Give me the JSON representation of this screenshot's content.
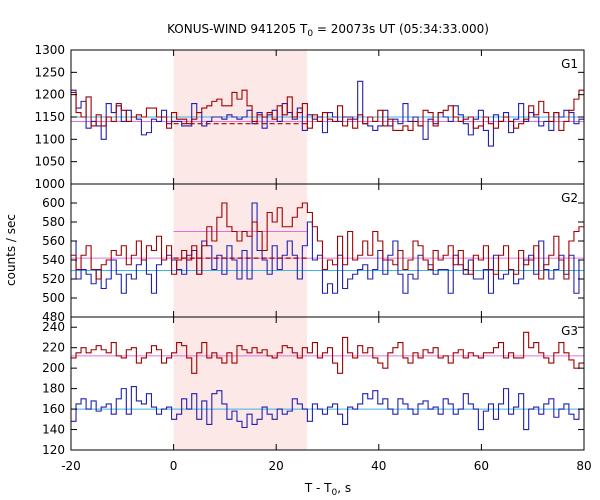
{
  "chart_data": {
    "type": "line",
    "title": "KONUS-WIND 941205 T",
    "title_sub": "0",
    "title_rest": " = 20073s UT (05:34:33.000)",
    "xlabel": "T - T",
    "xlabel_sub": "0",
    "xlabel_rest": ", s",
    "ylabel": "counts / sec",
    "xlim": [
      -20,
      80
    ],
    "x_ticks": [
      -20,
      0,
      20,
      40,
      60,
      80
    ],
    "highlight_interval": [
      0,
      26
    ],
    "colors": {
      "series_a": "#a00000",
      "series_b": "#2020b0",
      "bg_a": "#e070e0",
      "bg_b": "#40b0e0",
      "highlight": "#fde8e8"
    },
    "panels": [
      {
        "label": "G1",
        "ylim": [
          1000,
          1300
        ],
        "y_ticks": [
          1050,
          1100,
          1150,
          1200,
          1250,
          1300
        ],
        "bottom_tick": "1000",
        "background": {
          "a": 1140,
          "b": 1150
        },
        "dashed": {
          "a": {
            "x": [
              0,
              26
            ],
            "y": 1135
          },
          "b": null
        },
        "series_a": [
          1205,
          1160,
          1150,
          1195,
          1130,
          1155,
          1130,
          1150,
          1140,
          1180,
          1165,
          1140,
          1150,
          1155,
          1150,
          1170,
          1170,
          1150,
          1150,
          1125,
          1160,
          1145,
          1145,
          1135,
          1145,
          1160,
          1170,
          1175,
          1185,
          1190,
          1175,
          1175,
          1205,
          1190,
          1210,
          1175,
          1140,
          1155,
          1150,
          1160,
          1145,
          1175,
          1155,
          1195,
          1150,
          1160,
          1180,
          1125,
          1155,
          1140,
          1160,
          1145,
          1140,
          1175,
          1130,
          1145,
          1125,
          1155,
          1135,
          1150,
          1140,
          1165,
          1130,
          1145,
          1120,
          1120,
          1130,
          1120,
          1140,
          1130,
          1165,
          1160,
          1130,
          1160,
          1165,
          1175,
          1150,
          1140,
          1145,
          1150,
          1125,
          1130,
          1150,
          1135,
          1125,
          1140,
          1150,
          1140,
          1125,
          1135,
          1145,
          1175,
          1155,
          1185,
          1160,
          1140,
          1160,
          1120,
          1140,
          1165,
          1190,
          1210
        ],
        "series_b": [
          1210,
          1170,
          1185,
          1125,
          1140,
          1130,
          1100,
          1180,
          1160,
          1175,
          1140,
          1165,
          1150,
          1145,
          1110,
          1115,
          1145,
          1140,
          1165,
          1135,
          1140,
          1140,
          1130,
          1130,
          1180,
          1160,
          1130,
          1140,
          1150,
          1150,
          1145,
          1155,
          1150,
          1145,
          1150,
          1165,
          1135,
          1160,
          1125,
          1155,
          1165,
          1140,
          1180,
          1160,
          1145,
          1170,
          1120,
          1155,
          1145,
          1150,
          1115,
          1160,
          1150,
          1140,
          1150,
          1150,
          1145,
          1230,
          1135,
          1130,
          1120,
          1130,
          1165,
          1130,
          1145,
          1135,
          1180,
          1140,
          1150,
          1130,
          1100,
          1145,
          1135,
          1160,
          1150,
          1140,
          1175,
          1155,
          1135,
          1110,
          1145,
          1165,
          1120,
          1085,
          1155,
          1140,
          1160,
          1115,
          1145,
          1180,
          1140,
          1160,
          1150,
          1130,
          1140,
          1120,
          1160,
          1150,
          1165,
          1160,
          1135,
          1145
        ]
      },
      {
        "label": "G2",
        "ylim": [
          480,
          620
        ],
        "y_ticks": [
          500,
          520,
          540,
          560,
          580,
          600
        ],
        "bottom_tick": "480",
        "background": {
          "a": 542,
          "b": 529
        },
        "dashed": {
          "a": {
            "x": [
              0,
              26
            ],
            "y": 542
          },
          "b": null
        },
        "extra_line": {
          "x": [
            0,
            26
          ],
          "y": 570
        },
        "series_a": [
          545,
          530,
          545,
          555,
          530,
          520,
          535,
          540,
          550,
          545,
          555,
          535,
          545,
          560,
          540,
          555,
          550,
          565,
          540,
          555,
          525,
          540,
          550,
          540,
          555,
          525,
          555,
          575,
          560,
          585,
          600,
          575,
          570,
          560,
          570,
          565,
          580,
          570,
          550,
          590,
          580,
          595,
          575,
          575,
          585,
          595,
          600,
          590,
          575,
          560,
          530,
          540,
          535,
          565,
          535,
          570,
          540,
          545,
          560,
          545,
          570,
          560,
          540,
          540,
          535,
          550,
          530,
          540,
          560,
          555,
          540,
          530,
          550,
          540,
          545,
          555,
          535,
          550,
          530,
          525,
          545,
          540,
          555,
          530,
          525,
          545,
          555,
          530,
          525,
          550,
          535,
          540,
          555,
          520,
          535,
          545,
          565,
          540,
          520,
          560,
          570,
          575
        ],
        "series_b": [
          560,
          520,
          530,
          525,
          515,
          530,
          510,
          520,
          540,
          525,
          505,
          525,
          520,
          535,
          540,
          525,
          505,
          535,
          540,
          545,
          540,
          530,
          525,
          545,
          550,
          525,
          560,
          555,
          530,
          545,
          525,
          555,
          540,
          520,
          550,
          520,
          600,
          550,
          540,
          525,
          555,
          530,
          545,
          560,
          545,
          520,
          555,
          580,
          540,
          545,
          505,
          515,
          505,
          545,
          510,
          520,
          525,
          530,
          535,
          520,
          530,
          550,
          525,
          545,
          560,
          525,
          505,
          525,
          520,
          545,
          540,
          535,
          525,
          530,
          530,
          505,
          545,
          535,
          525,
          540,
          520,
          520,
          530,
          505,
          545,
          520,
          525,
          530,
          515,
          520,
          540,
          545,
          525,
          560,
          530,
          520,
          530,
          545,
          525,
          545,
          505,
          540
        ]
      },
      {
        "label": "G3",
        "ylim": [
          120,
          250
        ],
        "y_ticks": [
          140,
          160,
          180,
          200,
          220,
          240
        ],
        "bottom_tick": "120",
        "background": {
          "a": 212,
          "b": 160
        },
        "dashed": null,
        "series_a": [
          210,
          215,
          220,
          215,
          218,
          222,
          218,
          215,
          225,
          212,
          210,
          218,
          220,
          205,
          210,
          215,
          222,
          218,
          205,
          210,
          215,
          225,
          222,
          210,
          195,
          215,
          225,
          210,
          215,
          210,
          205,
          215,
          205,
          222,
          218,
          215,
          220,
          215,
          218,
          212,
          210,
          215,
          222,
          220,
          215,
          210,
          220,
          215,
          225,
          210,
          215,
          220,
          205,
          195,
          230,
          215,
          210,
          222,
          215,
          220,
          210,
          205,
          200,
          215,
          220,
          225,
          210,
          205,
          215,
          210,
          218,
          215,
          220,
          210,
          212,
          205,
          215,
          218,
          210,
          215,
          212,
          210,
          215,
          215,
          220,
          225,
          210,
          215,
          210,
          210,
          235,
          220,
          225,
          215,
          210,
          205,
          215,
          225,
          215,
          208,
          200,
          205
        ],
        "series_b": [
          148,
          165,
          170,
          160,
          168,
          158,
          162,
          165,
          155,
          170,
          180,
          155,
          182,
          168,
          165,
          175,
          162,
          155,
          160,
          162,
          150,
          155,
          170,
          160,
          175,
          150,
          168,
          145,
          175,
          178,
          165,
          150,
          158,
          148,
          142,
          155,
          145,
          150,
          162,
          155,
          150,
          160,
          155,
          158,
          170,
          165,
          160,
          148,
          165,
          160,
          155,
          162,
          165,
          155,
          145,
          162,
          160,
          165,
          175,
          170,
          178,
          165,
          170,
          160,
          155,
          170,
          165,
          160,
          155,
          165,
          168,
          160,
          162,
          155,
          170,
          165,
          155,
          160,
          175,
          165,
          160,
          140,
          158,
          165,
          150,
          165,
          180,
          155,
          162,
          175,
          140,
          160,
          162,
          155,
          165,
          170,
          152,
          160,
          165,
          155,
          150,
          160
        ]
      }
    ]
  }
}
